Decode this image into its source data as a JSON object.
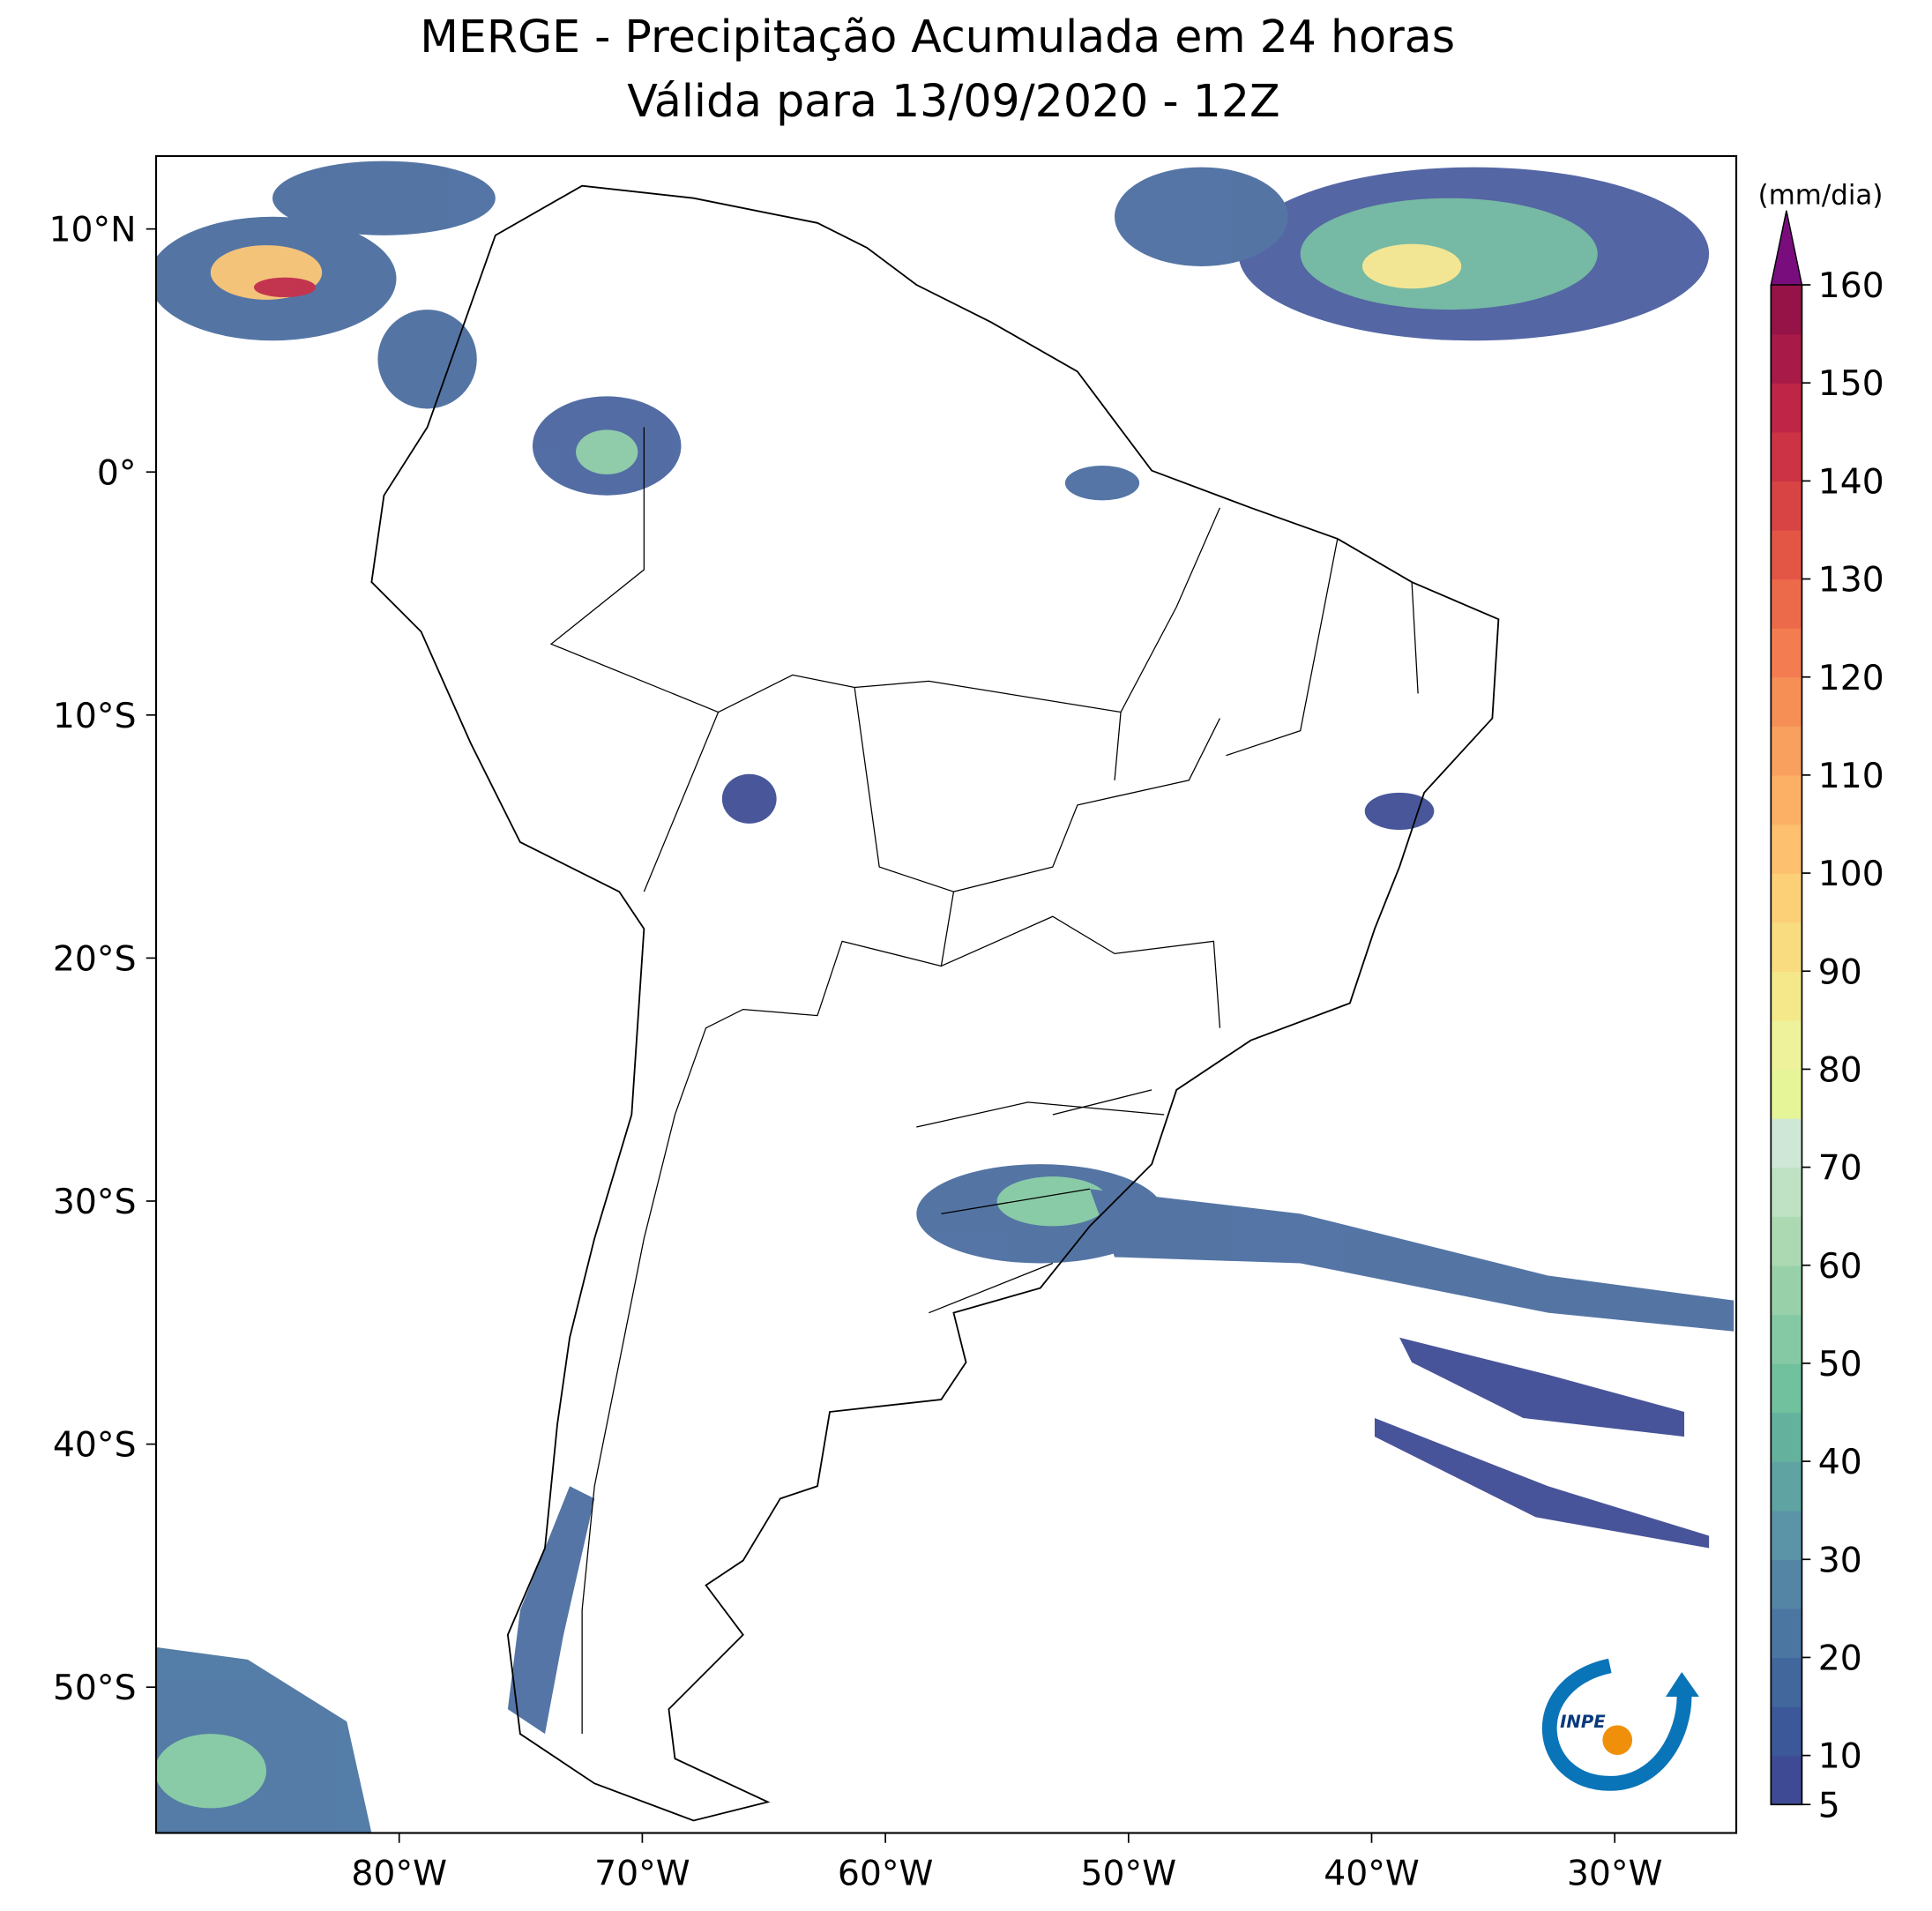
{
  "title": "MERGE - Precipitação Acumulada em 24 horas",
  "subtitle": "Válida para 13/09/2020 - 12Z",
  "map": {
    "xlim": [
      -90,
      -25
    ],
    "ylim": [
      -56,
      13
    ],
    "xticks": [
      {
        "value": -80,
        "label": "80°W"
      },
      {
        "value": -70,
        "label": "70°W"
      },
      {
        "value": -60,
        "label": "60°W"
      },
      {
        "value": -50,
        "label": "50°W"
      },
      {
        "value": -40,
        "label": "40°W"
      },
      {
        "value": -30,
        "label": "30°W"
      }
    ],
    "yticks": [
      {
        "value": 10,
        "label": "10°N"
      },
      {
        "value": 0,
        "label": "0°"
      },
      {
        "value": -10,
        "label": "10°S"
      },
      {
        "value": -20,
        "label": "20°S"
      },
      {
        "value": -30,
        "label": "30°S"
      },
      {
        "value": -40,
        "label": "40°S"
      },
      {
        "value": -50,
        "label": "50°S"
      }
    ]
  },
  "colorbar": {
    "unit": "(mm/dia)",
    "lim": [
      5,
      160
    ],
    "ticks": [
      5,
      10,
      20,
      30,
      40,
      50,
      60,
      70,
      80,
      90,
      100,
      110,
      120,
      130,
      140,
      150,
      160
    ],
    "colors": [
      "#3e4b94",
      "#3d5898",
      "#42679d",
      "#4b76a2",
      "#5485a5",
      "#5a94a6",
      "#5fa3a3",
      "#64b19e",
      "#71c09e",
      "#84c9a3",
      "#98d1a9",
      "#acd9b2",
      "#bfe1c4",
      "#cfe7d6",
      "#e6f598",
      "#eef29a",
      "#f4e88a",
      "#f8dc7f",
      "#fbd077",
      "#fcc06e",
      "#fcb066",
      "#f9a05e",
      "#f68f56",
      "#f37d50",
      "#ec6a4a",
      "#e35646",
      "#d84444",
      "#cc3445",
      "#be2546",
      "#a81a48",
      "#951347"
    ],
    "extend_color": "#7a0d7d"
  },
  "logo_text": "INPE"
}
